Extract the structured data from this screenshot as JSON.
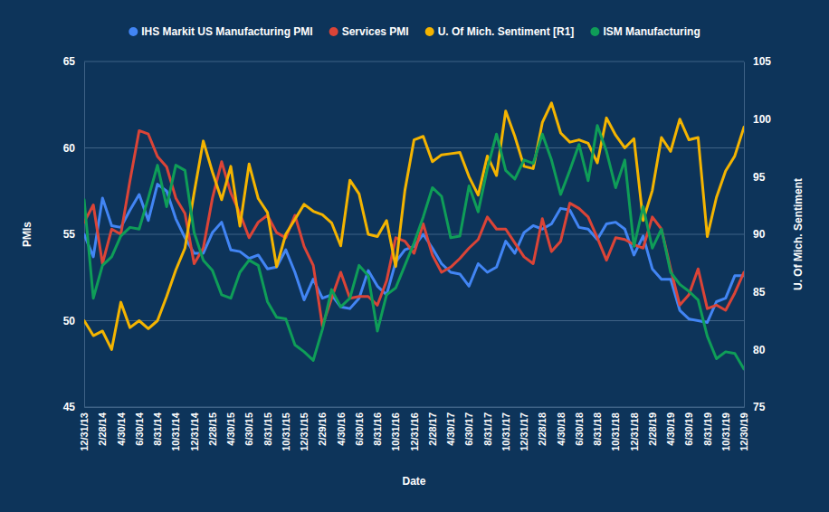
{
  "chart_data": {
    "type": "line",
    "x_label": "Date",
    "y_label": "PMIs",
    "y2_label": "U. Of Mich. Sentiment",
    "categories": [
      "12/31/13",
      null,
      "2/28/14",
      null,
      "4/30/14",
      null,
      "6/30/14",
      null,
      "8/31/14",
      null,
      "10/31/14",
      null,
      "12/31/14",
      null,
      "2/28/15",
      null,
      "4/30/15",
      null,
      "6/30/15",
      null,
      "8/31/15",
      null,
      "10/31/15",
      null,
      "12/31/15",
      null,
      "2/29/16",
      null,
      "4/30/16",
      null,
      "6/30/16",
      null,
      "8/31/16",
      null,
      "10/31/16",
      null,
      "12/31/16",
      null,
      "2/28/17",
      null,
      "4/30/17",
      null,
      "6/30/17",
      null,
      "8/31/17",
      null,
      "10/31/17",
      null,
      "12/31/17",
      null,
      "2/28/18",
      null,
      "4/30/18",
      null,
      "6/30/18",
      null,
      "8/31/18",
      null,
      "10/31/18",
      null,
      "12/31/18",
      null,
      "2/28/19",
      null,
      "4/30/19",
      null,
      "6/30/19",
      null,
      "8/31/19",
      null,
      "10/31/19",
      null,
      "12/30/19"
    ],
    "ylim": [
      45,
      65
    ],
    "yticks": [
      45,
      50,
      55,
      60,
      65
    ],
    "y2lim": [
      75,
      105
    ],
    "y2ticks": [
      75,
      80,
      85,
      90,
      95,
      100,
      105
    ],
    "grid": true,
    "legend": "top",
    "series": [
      {
        "name": "IHS Markit US Manufacturing PMI",
        "color": "#4285f4",
        "values": [
          55.0,
          53.7,
          57.1,
          55.5,
          55.4,
          56.4,
          57.3,
          55.8,
          57.9,
          57.5,
          55.9,
          54.8,
          53.9,
          53.9,
          55.1,
          55.7,
          54.1,
          54.0,
          53.6,
          53.8,
          53.0,
          53.1,
          54.1,
          52.8,
          51.2,
          52.4,
          51.3,
          51.5,
          50.8,
          50.7,
          51.3,
          52.9,
          52.0,
          51.5,
          53.4,
          54.1,
          54.3,
          55.0,
          54.2,
          53.3,
          52.8,
          52.7,
          52.0,
          53.3,
          52.8,
          53.1,
          54.6,
          53.9,
          55.1,
          55.5,
          55.3,
          55.6,
          56.5,
          56.4,
          55.4,
          55.3,
          54.7,
          55.6,
          55.7,
          55.3,
          53.8,
          54.9,
          53.0,
          52.4,
          52.4,
          50.6,
          50.1,
          50.0,
          49.9,
          51.1,
          51.3,
          52.6,
          52.6
        ]
      },
      {
        "name": "Services PMI",
        "color": "#db4437",
        "values": [
          55.7,
          56.7,
          53.3,
          55.3,
          55.0,
          58.1,
          61.0,
          60.8,
          59.5,
          58.9,
          57.1,
          56.2,
          53.3,
          54.2,
          57.1,
          59.2,
          57.4,
          56.2,
          54.8,
          55.7,
          56.1,
          55.1,
          54.8,
          56.1,
          54.3,
          53.2,
          49.7,
          51.3,
          52.8,
          51.3,
          51.4,
          51.4,
          50.9,
          52.3,
          54.8,
          54.6,
          53.9,
          55.6,
          53.8,
          52.8,
          53.1,
          53.6,
          54.2,
          54.7,
          56.0,
          55.3,
          55.3,
          54.5,
          53.7,
          53.3,
          55.9,
          54.0,
          54.6,
          56.8,
          56.5,
          56.0,
          54.8,
          53.5,
          54.8,
          54.7,
          54.4,
          54.2,
          56.0,
          55.3,
          53.0,
          50.9,
          51.5,
          53.0,
          50.7,
          50.9,
          50.6,
          51.6,
          52.8
        ]
      },
      {
        "name": "U. Of Mich. Sentiment [R1]",
        "color": "#f4b400",
        "axis": "y2",
        "values": [
          82.5,
          81.2,
          81.6,
          80.0,
          84.1,
          81.9,
          82.5,
          81.8,
          82.5,
          84.6,
          86.9,
          88.8,
          93.6,
          98.1,
          95.4,
          93.0,
          95.9,
          90.7,
          96.1,
          93.1,
          91.9,
          87.2,
          90.0,
          91.3,
          92.6,
          92.0,
          91.7,
          91.0,
          89.0,
          94.7,
          93.5,
          90.0,
          89.8,
          91.2,
          87.2,
          93.8,
          98.2,
          98.5,
          96.3,
          96.9,
          97.0,
          97.1,
          95.0,
          93.4,
          96.8,
          95.1,
          100.7,
          98.5,
          95.9,
          95.7,
          99.7,
          101.4,
          98.8,
          98.0,
          98.2,
          97.9,
          96.2,
          100.1,
          98.6,
          97.5,
          98.3,
          91.2,
          93.8,
          98.4,
          97.2,
          100.0,
          98.2,
          98.4,
          89.8,
          93.2,
          95.5,
          96.8,
          99.3
        ]
      },
      {
        "name": "ISM Manufacturing",
        "color": "#0f9d58",
        "values": [
          57.0,
          51.3,
          53.2,
          53.7,
          54.9,
          55.4,
          55.3,
          57.1,
          59.0,
          56.6,
          59.0,
          58.7,
          55.1,
          53.5,
          52.9,
          51.5,
          51.3,
          52.8,
          53.5,
          53.2,
          51.1,
          50.2,
          50.1,
          48.6,
          48.2,
          47.7,
          49.5,
          51.8,
          50.8,
          51.3,
          53.2,
          52.6,
          49.4,
          51.5,
          51.9,
          53.2,
          54.5,
          56.0,
          57.7,
          57.2,
          54.8,
          54.9,
          57.8,
          56.3,
          58.8,
          60.8,
          58.7,
          58.2,
          59.3,
          59.1,
          60.8,
          59.3,
          57.3,
          58.7,
          60.2,
          58.1,
          61.3,
          59.8,
          57.7,
          59.3,
          54.3,
          56.6,
          54.2,
          55.3,
          52.8,
          52.1,
          51.7,
          51.2,
          49.1,
          47.8,
          48.2,
          48.1,
          47.2
        ]
      }
    ]
  }
}
